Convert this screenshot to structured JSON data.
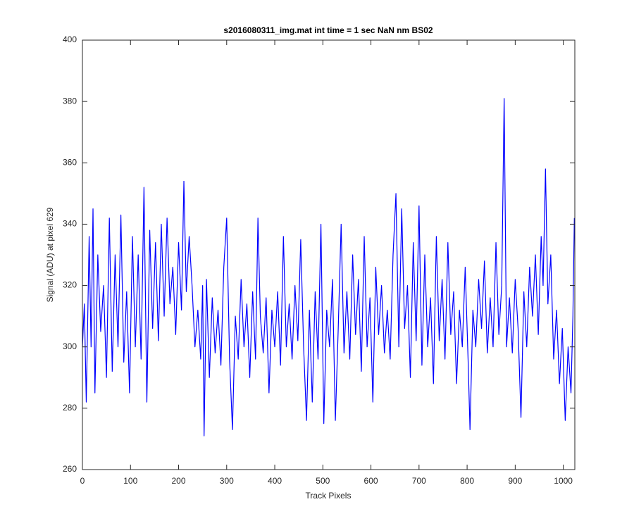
{
  "chart_data": {
    "type": "line",
    "title": "s2016080311_img.mat int time = 1 sec  NaN nm BS02",
    "xlabel": "Track Pixels",
    "ylabel": "Signal (ADU) at pixel 629",
    "color": "#0000ff",
    "xlim": [
      0,
      1024
    ],
    "ylim": [
      260,
      400
    ],
    "xticks": [
      0,
      100,
      200,
      300,
      400,
      500,
      600,
      700,
      800,
      900,
      1000
    ],
    "yticks": [
      260,
      280,
      300,
      320,
      340,
      360,
      380,
      400
    ],
    "x": [
      0,
      4,
      8,
      14,
      18,
      22,
      26,
      32,
      38,
      44,
      50,
      56,
      62,
      68,
      74,
      80,
      86,
      92,
      98,
      104,
      110,
      116,
      122,
      128,
      134,
      140,
      146,
      152,
      158,
      164,
      170,
      176,
      182,
      188,
      194,
      200,
      206,
      211,
      216,
      222,
      228,
      234,
      240,
      246,
      250,
      253,
      258,
      264,
      270,
      276,
      282,
      288,
      294,
      300,
      306,
      312,
      318,
      324,
      330,
      336,
      342,
      348,
      354,
      360,
      365,
      370,
      376,
      382,
      388,
      394,
      400,
      406,
      412,
      418,
      424,
      430,
      436,
      442,
      448,
      454,
      460,
      466,
      472,
      478,
      484,
      490,
      496,
      502,
      508,
      514,
      520,
      526,
      532,
      538,
      544,
      550,
      556,
      562,
      568,
      574,
      580,
      586,
      592,
      598,
      604,
      610,
      616,
      622,
      628,
      634,
      640,
      646,
      652,
      658,
      664,
      670,
      676,
      682,
      688,
      694,
      700,
      706,
      712,
      718,
      724,
      730,
      736,
      742,
      748,
      754,
      760,
      766,
      772,
      778,
      784,
      790,
      796,
      802,
      806,
      812,
      818,
      824,
      830,
      836,
      842,
      848,
      854,
      860,
      866,
      872,
      877,
      882,
      888,
      894,
      900,
      906,
      912,
      918,
      924,
      930,
      936,
      942,
      948,
      954,
      958,
      963,
      968,
      974,
      980,
      986,
      992,
      998,
      1004,
      1010,
      1016,
      1020,
      1023
    ],
    "values": [
      300,
      314,
      282,
      336,
      300,
      345,
      285,
      330,
      305,
      320,
      290,
      342,
      292,
      330,
      300,
      343,
      295,
      318,
      285,
      336,
      300,
      330,
      296,
      352,
      282,
      338,
      306,
      334,
      302,
      340,
      310,
      342,
      314,
      326,
      304,
      334,
      312,
      354,
      318,
      336,
      320,
      300,
      312,
      296,
      320,
      271,
      322,
      290,
      316,
      298,
      312,
      294,
      326,
      342,
      296,
      273,
      310,
      296,
      322,
      300,
      314,
      290,
      318,
      296,
      342,
      310,
      298,
      316,
      285,
      312,
      300,
      318,
      294,
      336,
      300,
      314,
      296,
      320,
      302,
      335,
      300,
      276,
      312,
      282,
      318,
      296,
      340,
      275,
      312,
      300,
      322,
      276,
      306,
      340,
      298,
      318,
      296,
      330,
      304,
      322,
      292,
      336,
      300,
      316,
      282,
      326,
      304,
      320,
      298,
      312,
      296,
      330,
      350,
      300,
      345,
      306,
      320,
      290,
      334,
      302,
      346,
      294,
      330,
      300,
      316,
      288,
      336,
      302,
      322,
      296,
      334,
      304,
      318,
      288,
      312,
      300,
      326,
      296,
      273,
      312,
      300,
      322,
      306,
      328,
      298,
      316,
      300,
      334,
      304,
      320,
      381,
      300,
      316,
      298,
      322,
      306,
      277,
      318,
      300,
      326,
      310,
      330,
      304,
      336,
      320,
      358,
      314,
      330,
      296,
      312,
      288,
      306,
      276,
      300,
      285,
      310,
      342
    ]
  }
}
